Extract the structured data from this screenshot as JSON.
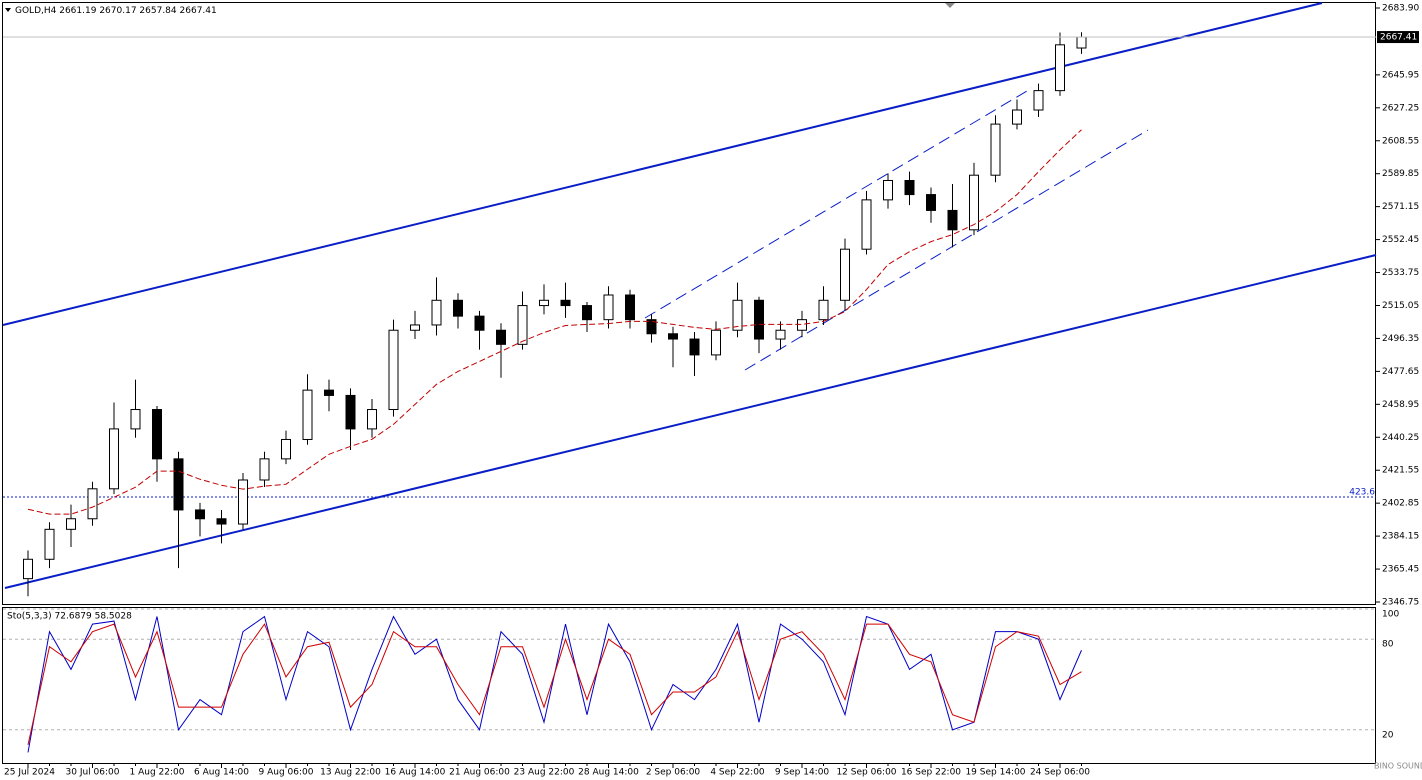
{
  "chart_data": [
    {
      "type": "candlestick",
      "symbol": "GOLD,H4",
      "categories": [
        "25 Jul 2024",
        null,
        null,
        "30 Jul 06:00",
        null,
        null,
        "1 Aug 22:00",
        null,
        null,
        "6 Aug 14:00",
        null,
        null,
        "9 Aug 06:00",
        null,
        null,
        "13 Aug 22:00",
        null,
        null,
        "16 Aug 14:00",
        null,
        null,
        "21 Aug 06:00",
        null,
        null,
        "23 Aug 22:00",
        null,
        null,
        "28 Aug 14:00",
        null,
        null,
        "2 Sep 06:00",
        null,
        null,
        "4 Sep 22:00",
        null,
        null,
        "9 Sep 14:00",
        null,
        null,
        "12 Sep 06:00",
        null,
        null,
        "16 Sep 22:00",
        null,
        null,
        "19 Sep 14:00",
        null,
        null,
        "24 Sep 06:00",
        null
      ],
      "open": [
        2360,
        2371,
        2388,
        2394,
        2411,
        2445,
        2456,
        2428,
        2399,
        2394,
        2391,
        2416,
        2428,
        2439,
        2467,
        2464,
        2445,
        2456,
        2501,
        2504,
        2518,
        2509,
        2501,
        2493,
        2515,
        2518,
        2515,
        2507,
        2521,
        2507,
        2499,
        2496,
        2487,
        2501,
        2518,
        2496,
        2501,
        2507,
        2518,
        2547,
        2575,
        2586,
        2578,
        2569,
        2558,
        2589,
        2618,
        2626,
        2637,
        2661.19
      ],
      "high": [
        2376,
        2392,
        2402,
        2415,
        2460,
        2473,
        2458,
        2432,
        2403,
        2399,
        2420,
        2432,
        2444,
        2476,
        2473,
        2468,
        2462,
        2507,
        2512,
        2531,
        2522,
        2512,
        2505,
        2523,
        2527,
        2528,
        2517,
        2526,
        2524,
        2510,
        2503,
        2500,
        2506,
        2528,
        2520,
        2506,
        2512,
        2526,
        2553,
        2580,
        2590,
        2591,
        2582,
        2584,
        2596,
        2623,
        2632,
        2641,
        2670,
        2670.17
      ],
      "low": [
        2350,
        2366,
        2378,
        2390,
        2408,
        2440,
        2415,
        2366,
        2384,
        2380,
        2388,
        2412,
        2425,
        2436,
        2455,
        2433,
        2440,
        2452,
        2496,
        2498,
        2502,
        2490,
        2474,
        2490,
        2510,
        2508,
        2500,
        2502,
        2502,
        2494,
        2480,
        2475,
        2484,
        2497,
        2488,
        2490,
        2497,
        2504,
        2512,
        2544,
        2570,
        2572,
        2562,
        2548,
        2555,
        2585,
        2615,
        2622,
        2634,
        2657.84
      ],
      "close": [
        2371,
        2388,
        2394,
        2411,
        2445,
        2456,
        2428,
        2399,
        2394,
        2391,
        2416,
        2428,
        2439,
        2467,
        2464,
        2445,
        2456,
        2501,
        2504,
        2518,
        2509,
        2501,
        2493,
        2515,
        2518,
        2515,
        2507,
        2521,
        2507,
        2499,
        2496,
        2487,
        2501,
        2518,
        2496,
        2501,
        2507,
        2518,
        2547,
        2575,
        2586,
        2578,
        2569,
        2558,
        2589,
        2618,
        2626,
        2637,
        2663,
        2667.41
      ],
      "ma": {
        "color": "#c00000",
        "values": [
          2399.4,
          2396.6,
          2396.6,
          2400.6,
          2406.2,
          2411.9,
          2421.0,
          2421.0,
          2416.4,
          2413.0,
          2410.8,
          2412.5,
          2413.6,
          2422.1,
          2430.6,
          2435.1,
          2439.1,
          2447.6,
          2458.9,
          2470.3,
          2477.6,
          2483.3,
          2489.0,
          2494.7,
          2499.7,
          2503.7,
          2504.3,
          2504.8,
          2506.0,
          2506.0,
          2504.3,
          2502.6,
          2501.5,
          2503.1,
          2504.3,
          2504.3,
          2504.3,
          2506.0,
          2511.6,
          2524.1,
          2538.3,
          2545.6,
          2551.3,
          2555.3,
          2561.0,
          2568.3,
          2578.0,
          2591.0,
          2603.4,
          2614.8
        ]
      },
      "up_color": "#ffffff",
      "down_color": "#000000",
      "ylim": [
        2346.75,
        2683.9
      ],
      "yticks": [
        {
          "value": 2683.9,
          "label": "2683.90"
        },
        2645.95,
        2627.25,
        2608.55,
        2589.85,
        2571.15,
        2552.45,
        2533.75,
        2515.05,
        2496.35,
        2477.65,
        2458.95,
        2440.25,
        2421.55,
        2402.85,
        2384.15,
        2365.45,
        2346.75
      ],
      "level_label": "423.6"
    },
    {
      "type": "line",
      "title": "Sto(5,3,3) 72.6879 58.5028",
      "ylim": [
        0,
        100
      ],
      "yticks": [
        20,
        80,
        100
      ],
      "series": [
        {
          "color": "#0000c8",
          "values": [
            5,
            85,
            60,
            90,
            92,
            40,
            95,
            20,
            40,
            30,
            85,
            95,
            40,
            85,
            75,
            20,
            60,
            95,
            70,
            80,
            40,
            20,
            85,
            70,
            25,
            90,
            30,
            90,
            65,
            20,
            50,
            40,
            60,
            90,
            25,
            90,
            80,
            65,
            30,
            95,
            90,
            60,
            70,
            20,
            25,
            85,
            85,
            80,
            40,
            72.6879
          ]
        },
        {
          "color": "#d00000",
          "values": [
            10,
            75,
            65,
            85,
            90,
            55,
            85,
            35,
            35,
            35,
            70,
            90,
            55,
            75,
            78,
            35,
            50,
            85,
            75,
            75,
            50,
            30,
            75,
            75,
            35,
            80,
            40,
            80,
            70,
            30,
            45,
            45,
            55,
            85,
            40,
            80,
            85,
            70,
            40,
            90,
            90,
            70,
            65,
            30,
            25,
            75,
            85,
            82,
            50,
            58.5028
          ]
        }
      ]
    }
  ],
  "watermark": "BINO SOUND"
}
